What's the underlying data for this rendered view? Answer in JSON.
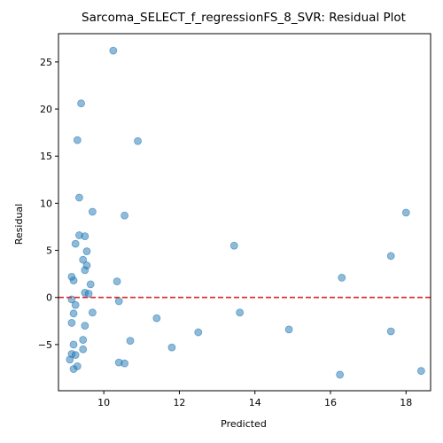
{
  "chart_data": {
    "type": "scatter",
    "title": "Sarcoma_SELECT_f_regressionFS_8_SVR: Residual Plot",
    "xlabel": "Predicted",
    "ylabel": "Residual",
    "xlim": [
      8.8,
      18.65
    ],
    "ylim": [
      -9.9,
      28.0
    ],
    "xticks": [
      10,
      12,
      14,
      16,
      18
    ],
    "yticks": [
      -5,
      0,
      5,
      10,
      15,
      20,
      25
    ],
    "reference_line": {
      "y": 0,
      "color": "#d62728",
      "style": "dashed"
    },
    "point_color": "#1f77b4",
    "grid": false,
    "points": [
      {
        "x": 10.25,
        "y": 26.2
      },
      {
        "x": 9.4,
        "y": 20.6
      },
      {
        "x": 9.3,
        "y": 16.7
      },
      {
        "x": 10.9,
        "y": 16.6
      },
      {
        "x": 9.35,
        "y": 10.6
      },
      {
        "x": 9.7,
        "y": 9.1
      },
      {
        "x": 10.55,
        "y": 8.7
      },
      {
        "x": 18.0,
        "y": 9.0
      },
      {
        "x": 9.35,
        "y": 6.6
      },
      {
        "x": 9.5,
        "y": 6.5
      },
      {
        "x": 9.25,
        "y": 5.7
      },
      {
        "x": 13.45,
        "y": 5.5
      },
      {
        "x": 9.55,
        "y": 4.9
      },
      {
        "x": 17.6,
        "y": 4.4
      },
      {
        "x": 9.45,
        "y": 4.0
      },
      {
        "x": 9.55,
        "y": 3.4
      },
      {
        "x": 9.5,
        "y": 2.9
      },
      {
        "x": 9.15,
        "y": 2.2
      },
      {
        "x": 16.3,
        "y": 2.1
      },
      {
        "x": 9.2,
        "y": 1.8
      },
      {
        "x": 10.35,
        "y": 1.7
      },
      {
        "x": 9.65,
        "y": 1.4
      },
      {
        "x": 9.5,
        "y": 0.5
      },
      {
        "x": 9.6,
        "y": 0.4
      },
      {
        "x": 9.15,
        "y": -0.2
      },
      {
        "x": 10.4,
        "y": -0.4
      },
      {
        "x": 9.25,
        "y": -0.8
      },
      {
        "x": 9.2,
        "y": -1.7
      },
      {
        "x": 9.7,
        "y": -1.6
      },
      {
        "x": 13.6,
        "y": -1.6
      },
      {
        "x": 11.4,
        "y": -2.2
      },
      {
        "x": 9.15,
        "y": -2.7
      },
      {
        "x": 9.5,
        "y": -3.0
      },
      {
        "x": 14.9,
        "y": -3.4
      },
      {
        "x": 12.5,
        "y": -3.7
      },
      {
        "x": 17.6,
        "y": -3.6
      },
      {
        "x": 9.45,
        "y": -4.5
      },
      {
        "x": 10.7,
        "y": -4.6
      },
      {
        "x": 9.2,
        "y": -5.0
      },
      {
        "x": 11.8,
        "y": -5.3
      },
      {
        "x": 9.45,
        "y": -5.5
      },
      {
        "x": 9.15,
        "y": -6.0
      },
      {
        "x": 9.25,
        "y": -6.1
      },
      {
        "x": 9.1,
        "y": -6.6
      },
      {
        "x": 10.4,
        "y": -6.9
      },
      {
        "x": 10.55,
        "y": -7.0
      },
      {
        "x": 9.3,
        "y": -7.3
      },
      {
        "x": 9.2,
        "y": -7.6
      },
      {
        "x": 18.4,
        "y": -7.8
      },
      {
        "x": 16.25,
        "y": -8.2
      }
    ]
  }
}
